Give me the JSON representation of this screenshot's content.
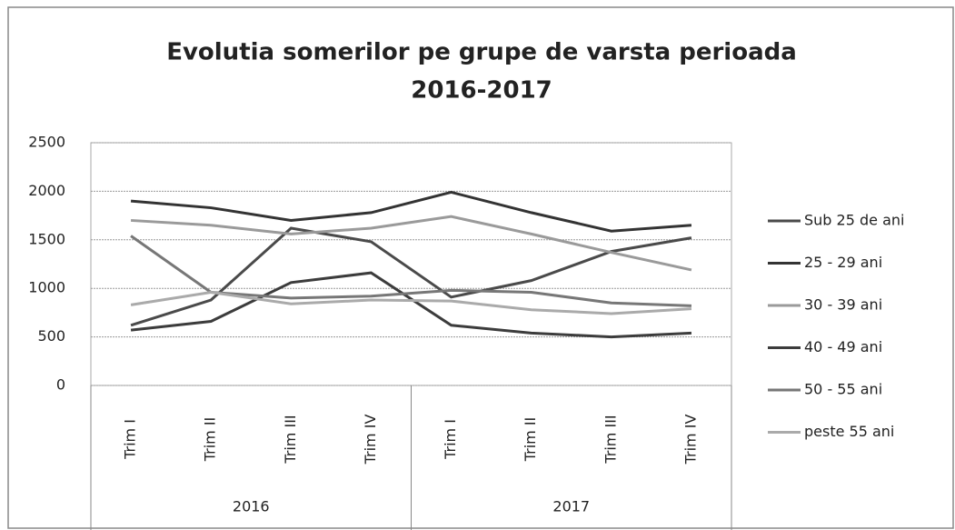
{
  "chart_data": {
    "type": "line",
    "title": [
      "Evolutia somerilor pe grupe de varsta perioada",
      "2016-2017"
    ],
    "categories": [
      "Trim I",
      "Trim II",
      "Trim III",
      "Trim IV",
      "Trim I",
      "Trim II",
      "Trim III",
      "Trim IV"
    ],
    "groups": [
      "2016",
      "2017"
    ],
    "series": [
      {
        "name": "Sub 25 de ani",
        "color": "#4a4a4a",
        "values": [
          620,
          880,
          1620,
          1480,
          910,
          1080,
          1380,
          1520
        ]
      },
      {
        "name": "25 - 29 ani",
        "color": "#333333",
        "values": [
          1900,
          1830,
          1700,
          1780,
          1990,
          1780,
          1590,
          1650
        ]
      },
      {
        "name": "30 - 39 ani",
        "color": "#9a9a9a",
        "values": [
          1700,
          1650,
          1560,
          1620,
          1740,
          1560,
          1370,
          1190
        ]
      },
      {
        "name": "40 - 49 ani",
        "color": "#3c3c3c",
        "values": [
          570,
          660,
          1060,
          1160,
          620,
          540,
          500,
          540
        ]
      },
      {
        "name": "50 - 55 ani",
        "color": "#777777",
        "values": [
          1540,
          960,
          900,
          920,
          980,
          960,
          850,
          820
        ]
      },
      {
        "name": "peste 55 ani",
        "color": "#aaaaaa",
        "values": [
          830,
          960,
          840,
          880,
          870,
          780,
          740,
          790
        ]
      }
    ],
    "ylim": [
      0,
      2500
    ],
    "yticks": [
      0,
      500,
      1000,
      1500,
      2000,
      2500
    ],
    "grid": true,
    "legend": "right"
  }
}
